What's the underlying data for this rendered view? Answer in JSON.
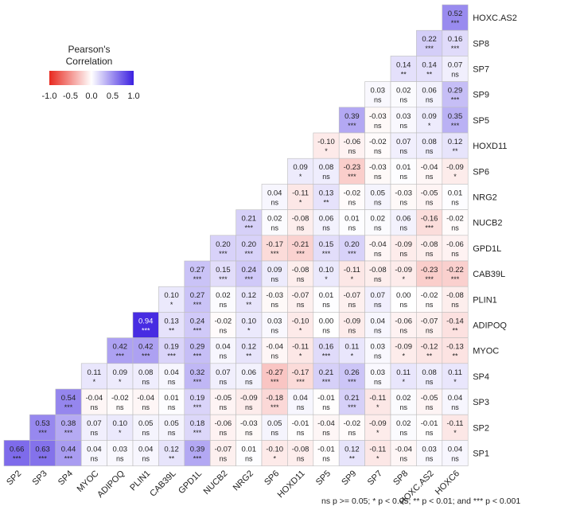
{
  "chart_data": {
    "type": "heatmap",
    "title": "",
    "row_labels": [
      "HOXC.AS2",
      "SP8",
      "SP7",
      "SP9",
      "SP5",
      "HOXD11",
      "SP6",
      "NRG2",
      "NUCB2",
      "GPD1L",
      "CAB39L",
      "PLIN1",
      "ADIPOQ",
      "MYOC",
      "SP4",
      "SP3",
      "SP2",
      "SP1"
    ],
    "col_labels": [
      "SP2",
      "SP3",
      "SP4",
      "MYOC",
      "ADIPOQ",
      "PLIN1",
      "CAB39L",
      "GPD1L",
      "NUCB2",
      "NRG2",
      "SP6",
      "HOXD11",
      "SP5",
      "SP9",
      "SP7",
      "SP8",
      "HOXC.AS2",
      "HOXC6"
    ],
    "cells": [
      [
        {
          "v": "0.52",
          "s": "***"
        }
      ],
      [
        {
          "v": "0.22",
          "s": "***"
        },
        {
          "v": "0.16",
          "s": "***"
        }
      ],
      [
        {
          "v": "0.14",
          "s": "**"
        },
        {
          "v": "0.14",
          "s": "**"
        },
        {
          "v": "0.07",
          "s": "ns"
        }
      ],
      [
        {
          "v": "0.03",
          "s": "ns"
        },
        {
          "v": "0.02",
          "s": "ns"
        },
        {
          "v": "0.06",
          "s": "ns"
        },
        {
          "v": "0.29",
          "s": "***"
        }
      ],
      [
        {
          "v": "0.39",
          "s": "***"
        },
        {
          "v": "-0.03",
          "s": "ns"
        },
        {
          "v": "0.03",
          "s": "ns"
        },
        {
          "v": "0.09",
          "s": "*"
        },
        {
          "v": "0.35",
          "s": "***"
        }
      ],
      [
        {
          "v": "-0.10",
          "s": "*"
        },
        {
          "v": "-0.06",
          "s": "ns"
        },
        {
          "v": "-0.02",
          "s": "ns"
        },
        {
          "v": "0.07",
          "s": "ns"
        },
        {
          "v": "0.08",
          "s": "ns"
        },
        {
          "v": "0.12",
          "s": "**"
        }
      ],
      [
        {
          "v": "0.09",
          "s": "*"
        },
        {
          "v": "0.08",
          "s": "ns"
        },
        {
          "v": "-0.23",
          "s": "***"
        },
        {
          "v": "-0.03",
          "s": "ns"
        },
        {
          "v": "0.01",
          "s": "ns"
        },
        {
          "v": "-0.04",
          "s": "ns"
        },
        {
          "v": "-0.09",
          "s": "*"
        }
      ],
      [
        {
          "v": "0.04",
          "s": "ns"
        },
        {
          "v": "-0.11",
          "s": "*"
        },
        {
          "v": "0.13",
          "s": "**"
        },
        {
          "v": "-0.02",
          "s": "ns"
        },
        {
          "v": "0.05",
          "s": "ns"
        },
        {
          "v": "-0.03",
          "s": "ns"
        },
        {
          "v": "-0.05",
          "s": "ns"
        },
        {
          "v": "0.01",
          "s": "ns"
        }
      ],
      [
        {
          "v": "0.21",
          "s": "***"
        },
        {
          "v": "0.02",
          "s": "ns"
        },
        {
          "v": "-0.08",
          "s": "ns"
        },
        {
          "v": "0.06",
          "s": "ns"
        },
        {
          "v": "0.01",
          "s": "ns"
        },
        {
          "v": "0.02",
          "s": "ns"
        },
        {
          "v": "0.06",
          "s": "ns"
        },
        {
          "v": "-0.16",
          "s": "***"
        },
        {
          "v": "-0.02",
          "s": "ns"
        }
      ],
      [
        {
          "v": "0.20",
          "s": "***"
        },
        {
          "v": "0.20",
          "s": "***"
        },
        {
          "v": "-0.17",
          "s": "***"
        },
        {
          "v": "-0.21",
          "s": "***"
        },
        {
          "v": "0.15",
          "s": "***"
        },
        {
          "v": "0.20",
          "s": "***"
        },
        {
          "v": "-0.04",
          "s": "ns"
        },
        {
          "v": "-0.09",
          "s": "ns"
        },
        {
          "v": "-0.08",
          "s": "ns"
        },
        {
          "v": "-0.06",
          "s": "ns"
        }
      ],
      [
        {
          "v": "0.27",
          "s": "***"
        },
        {
          "v": "0.15",
          "s": "***"
        },
        {
          "v": "0.24",
          "s": "***"
        },
        {
          "v": "0.09",
          "s": "ns"
        },
        {
          "v": "-0.08",
          "s": "ns"
        },
        {
          "v": "0.10",
          "s": "*"
        },
        {
          "v": "-0.11",
          "s": "*"
        },
        {
          "v": "-0.08",
          "s": "ns"
        },
        {
          "v": "-0.09",
          "s": "*"
        },
        {
          "v": "-0.23",
          "s": "***"
        },
        {
          "v": "-0.22",
          "s": "***"
        }
      ],
      [
        {
          "v": "0.10",
          "s": "*"
        },
        {
          "v": "0.27",
          "s": "***"
        },
        {
          "v": "0.02",
          "s": "ns"
        },
        {
          "v": "0.12",
          "s": "**"
        },
        {
          "v": "-0.03",
          "s": "ns"
        },
        {
          "v": "-0.07",
          "s": "ns"
        },
        {
          "v": "0.01",
          "s": "ns"
        },
        {
          "v": "-0.07",
          "s": "ns"
        },
        {
          "v": "0.07",
          "s": "ns"
        },
        {
          "v": "0.00",
          "s": "ns"
        },
        {
          "v": "-0.02",
          "s": "ns"
        },
        {
          "v": "-0.08",
          "s": "ns"
        }
      ],
      [
        {
          "v": "0.94",
          "s": "***"
        },
        {
          "v": "0.13",
          "s": "**"
        },
        {
          "v": "0.24",
          "s": "***"
        },
        {
          "v": "-0.02",
          "s": "ns"
        },
        {
          "v": "0.10",
          "s": "*"
        },
        {
          "v": "0.03",
          "s": "ns"
        },
        {
          "v": "-0.10",
          "s": "*"
        },
        {
          "v": "0.00",
          "s": "ns"
        },
        {
          "v": "-0.09",
          "s": "ns"
        },
        {
          "v": "0.04",
          "s": "ns"
        },
        {
          "v": "-0.06",
          "s": "ns"
        },
        {
          "v": "-0.07",
          "s": "ns"
        },
        {
          "v": "-0.14",
          "s": "**"
        }
      ],
      [
        {
          "v": "0.42",
          "s": "***"
        },
        {
          "v": "0.42",
          "s": "***"
        },
        {
          "v": "0.19",
          "s": "***"
        },
        {
          "v": "0.29",
          "s": "***"
        },
        {
          "v": "0.04",
          "s": "ns"
        },
        {
          "v": "0.12",
          "s": "**"
        },
        {
          "v": "-0.04",
          "s": "ns"
        },
        {
          "v": "-0.11",
          "s": "*"
        },
        {
          "v": "0.16",
          "s": "***"
        },
        {
          "v": "0.11",
          "s": "*"
        },
        {
          "v": "0.03",
          "s": "ns"
        },
        {
          "v": "-0.09",
          "s": "*"
        },
        {
          "v": "-0.12",
          "s": "**"
        },
        {
          "v": "-0.13",
          "s": "**"
        }
      ],
      [
        {
          "v": "0.11",
          "s": "*"
        },
        {
          "v": "0.09",
          "s": "*"
        },
        {
          "v": "0.08",
          "s": "ns"
        },
        {
          "v": "0.04",
          "s": "ns"
        },
        {
          "v": "0.32",
          "s": "***"
        },
        {
          "v": "0.07",
          "s": "ns"
        },
        {
          "v": "0.06",
          "s": "ns"
        },
        {
          "v": "-0.27",
          "s": "***"
        },
        {
          "v": "-0.17",
          "s": "***"
        },
        {
          "v": "0.21",
          "s": "***"
        },
        {
          "v": "0.26",
          "s": "***"
        },
        {
          "v": "0.03",
          "s": "ns"
        },
        {
          "v": "0.11",
          "s": "*"
        },
        {
          "v": "0.08",
          "s": "ns"
        },
        {
          "v": "0.11",
          "s": "*"
        }
      ],
      [
        {
          "v": "0.54",
          "s": "***"
        },
        {
          "v": "-0.04",
          "s": "ns"
        },
        {
          "v": "-0.02",
          "s": "ns"
        },
        {
          "v": "-0.04",
          "s": "ns"
        },
        {
          "v": "0.01",
          "s": "ns"
        },
        {
          "v": "0.19",
          "s": "***"
        },
        {
          "v": "-0.05",
          "s": "ns"
        },
        {
          "v": "-0.09",
          "s": "ns"
        },
        {
          "v": "-0.18",
          "s": "***"
        },
        {
          "v": "0.04",
          "s": "ns"
        },
        {
          "v": "-0.01",
          "s": "ns"
        },
        {
          "v": "0.21",
          "s": "***"
        },
        {
          "v": "-0.11",
          "s": "*"
        },
        {
          "v": "0.02",
          "s": "ns"
        },
        {
          "v": "-0.05",
          "s": "ns"
        },
        {
          "v": "0.04",
          "s": "ns"
        }
      ],
      [
        {
          "v": "0.53",
          "s": "***"
        },
        {
          "v": "0.38",
          "s": "***"
        },
        {
          "v": "0.07",
          "s": "ns"
        },
        {
          "v": "0.10",
          "s": "*"
        },
        {
          "v": "0.05",
          "s": "ns"
        },
        {
          "v": "0.05",
          "s": "ns"
        },
        {
          "v": "0.18",
          "s": "***"
        },
        {
          "v": "-0.06",
          "s": "ns"
        },
        {
          "v": "-0.03",
          "s": "ns"
        },
        {
          "v": "0.05",
          "s": "ns"
        },
        {
          "v": "-0.01",
          "s": "ns"
        },
        {
          "v": "-0.04",
          "s": "ns"
        },
        {
          "v": "-0.02",
          "s": "ns"
        },
        {
          "v": "-0.09",
          "s": "*"
        },
        {
          "v": "0.02",
          "s": "ns"
        },
        {
          "v": "-0.01",
          "s": "ns"
        },
        {
          "v": "-0.11",
          "s": "*"
        }
      ],
      [
        {
          "v": "0.66",
          "s": "***"
        },
        {
          "v": "0.63",
          "s": "***"
        },
        {
          "v": "0.44",
          "s": "***"
        },
        {
          "v": "0.04",
          "s": "ns"
        },
        {
          "v": "0.03",
          "s": "ns"
        },
        {
          "v": "0.04",
          "s": "ns"
        },
        {
          "v": "0.12",
          "s": "**"
        },
        {
          "v": "0.39",
          "s": "***"
        },
        {
          "v": "-0.07",
          "s": "ns"
        },
        {
          "v": "0.01",
          "s": "ns"
        },
        {
          "v": "-0.10",
          "s": "*"
        },
        {
          "v": "-0.08",
          "s": "ns"
        },
        {
          "v": "-0.01",
          "s": "ns"
        },
        {
          "v": "0.12",
          "s": "**"
        },
        {
          "v": "-0.11",
          "s": "*"
        },
        {
          "v": "-0.04",
          "s": "ns"
        },
        {
          "v": "0.03",
          "s": "ns"
        },
        {
          "v": "0.04",
          "s": "ns"
        }
      ]
    ],
    "legend": {
      "title_line1": "Pearson's",
      "title_line2": "Correlation",
      "ticks": [
        "-1.0",
        "-0.5",
        "0.0",
        "0.5",
        "1.0"
      ],
      "range": [
        -1,
        1
      ],
      "placement": "top-left"
    },
    "colors": {
      "negative": "#e8291f",
      "neutral": "#ffffff",
      "positive": "#3b1fe0"
    },
    "footnote": "ns p >= 0.05; * p < 0.05; ** p < 0.01; and *** p < 0.001"
  }
}
